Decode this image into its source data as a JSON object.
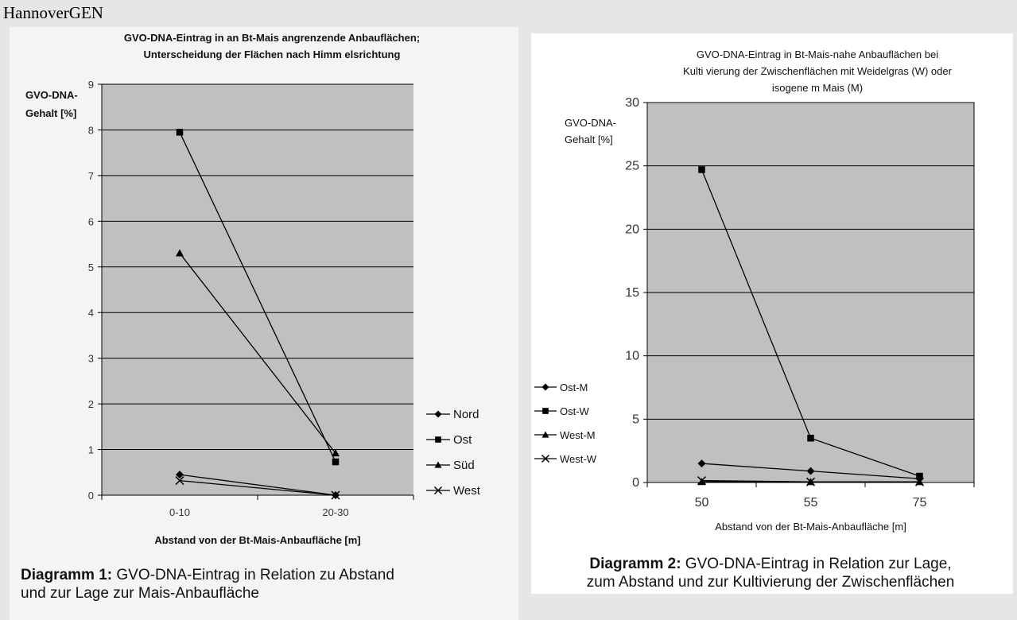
{
  "site": {
    "title": "HannoverGEN"
  },
  "chart_data": [
    {
      "type": "line",
      "title": "GVO-DNA-Eintrag in an Bt-Mais angrenzende Anbauflächen; Unterscheidung der Flächen nach Himmelsrichtung",
      "title_lines": [
        "GVO-DNA-Eintrag in an Bt-Mais angrenzende Anbauflächen;",
        "Unterscheidung der Flächen nach Himm elsrichtung"
      ],
      "ylabel_lines": [
        "GVO-DNA-",
        "Gehalt [%]"
      ],
      "xlabel": "Abstand von der Bt-Mais-Anbaufläche [m]",
      "categories": [
        "0-10",
        "20-30"
      ],
      "ylim": [
        0,
        9
      ],
      "yticks": [
        0,
        1,
        2,
        3,
        4,
        5,
        6,
        7,
        8,
        9
      ],
      "grid": true,
      "legend_position": "right",
      "series": [
        {
          "name": "Nord",
          "marker": "diamond",
          "values": [
            0.45,
            0.0
          ]
        },
        {
          "name": "Ost",
          "marker": "square",
          "values": [
            7.95,
            0.73
          ]
        },
        {
          "name": "Süd",
          "marker": "triangle",
          "values": [
            5.3,
            0.92
          ]
        },
        {
          "name": "West",
          "marker": "x",
          "values": [
            0.32,
            0.0
          ]
        }
      ],
      "caption_bold": "Diagramm 1:",
      "caption_line1": " GVO-DNA-Eintrag in Relation zu Abstand",
      "caption_line2": "und zur Lage zur Mais-Anbaufläche"
    },
    {
      "type": "line",
      "title": "GVO-DNA-Eintrag in Bt-Mais-nahe Anbauflächen bei Kultivierung der Zwischenflächen mit Weidelgras (W) oder isogenem Mais (M)",
      "title_lines": [
        "GVO-DNA-Eintrag in Bt-Mais-nahe Anbauflächen bei",
        "Kulti vierung der Zwischenflächen mit Weidelgras (W) oder",
        "isogene m Mais (M)"
      ],
      "ylabel_lines": [
        "GVO-DNA-",
        "Gehalt [%]"
      ],
      "xlabel": "Abstand von der Bt-Mais-Anbaufläche [m]",
      "categories": [
        "50",
        "55",
        "75"
      ],
      "ylim": [
        0,
        30
      ],
      "yticks": [
        0,
        5,
        10,
        15,
        20,
        25,
        30
      ],
      "grid": true,
      "legend_position": "left",
      "series": [
        {
          "name": "Ost-M",
          "marker": "diamond",
          "values": [
            1.5,
            0.9,
            0.3
          ]
        },
        {
          "name": "Ost-W",
          "marker": "square",
          "values": [
            24.7,
            3.5,
            0.5
          ]
        },
        {
          "name": "West-M",
          "marker": "triangle",
          "values": [
            0.05,
            0.05,
            0.05
          ]
        },
        {
          "name": "West-W",
          "marker": "x",
          "values": [
            0.15,
            0.05,
            0.05
          ]
        }
      ],
      "caption_bold": "Diagramm 2:",
      "caption_line1": " GVO-DNA-Eintrag in Relation zur Lage,",
      "caption_line2": "zum Abstand und zur Kultivierung der Zwischenflächen"
    }
  ],
  "colors": {
    "plot_bg": "#c0c0c0",
    "line": "#000000",
    "page_bg": "#e6e6e6"
  }
}
